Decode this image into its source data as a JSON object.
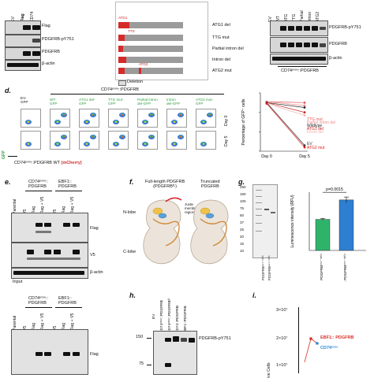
{
  "panel_a": {
    "lanes": [
      "EV",
      "Flag",
      "CD74"
    ],
    "rows": [
      "Flag",
      "PDGFRB-pY751",
      "PDGFRB",
      "β-actin"
    ]
  },
  "panel_b": {
    "rows": [
      {
        "tag": "ATG1",
        "label": "ATG1 del"
      },
      {
        "tag": "TTG",
        "label": "TTG mut"
      },
      {
        "tag": "",
        "label": "Partial intron del"
      },
      {
        "tag": "",
        "label": "Intron del"
      },
      {
        "tag": "ATG2",
        "label": "ATG2 mut"
      }
    ],
    "legend": "Deletion"
  },
  "panel_c": {
    "lanes": [
      "EV",
      "WT",
      "ATG",
      "TTG",
      "Partial",
      "Intron",
      "ATG2"
    ],
    "rows": [
      "PDGFRB-pY751",
      "PDGFRB",
      "β-actin"
    ],
    "bottom_label": "CD74ᵉˣᵒⁿ::PDGFRB"
  },
  "panel_d": {
    "label": "d.",
    "header": "CD74ᵉˣᵒⁿ::PDGFRB",
    "columns": [
      "EV-\nGFP",
      "WT-\nGFP",
      "ATG1 del-\nGFP",
      "TTG mut-\nGFP",
      "Partial intron\ndel-GFP",
      "Intron\ndel-GFP",
      "ATG2 mut-\nGFP"
    ],
    "rows": [
      "Day 0",
      "Day 5"
    ],
    "ylabel": "GFP",
    "xlabel_left": "CD74ᵉˣᵒⁿ::PDGFRB WT ",
    "xlabel_right": "(mCherry)"
  },
  "chart_data": [
    {
      "type": "line",
      "ylabel": "Percentage of GFP⁺ cells",
      "categories": [
        "Day 0",
        "Day 5"
      ],
      "ylim": [
        0,
        60
      ],
      "series": [
        {
          "name": "TTG mut",
          "values": [
            51,
            50
          ],
          "color": "#e05a5a"
        },
        {
          "name": "Partial intron del",
          "values": [
            51,
            47
          ],
          "color": "#f08a8a"
        },
        {
          "name": "Wildtype",
          "values": [
            50,
            45
          ],
          "color": "#222222"
        },
        {
          "name": "ATG1 del",
          "values": [
            50,
            40
          ],
          "color": "#c41e1e"
        },
        {
          "name": "Intron del",
          "values": [
            49,
            37
          ],
          "color": "#f4b0b0"
        },
        {
          "name": "EV",
          "values": [
            50,
            6
          ],
          "color": "#333333"
        },
        {
          "name": "ATG2 mut",
          "values": [
            49,
            4
          ],
          "color": "#e02020"
        }
      ]
    },
    {
      "type": "bar",
      "ylabel": "Luminescence intensity (RFU)",
      "categories": [
        "PDGFRB⁵⁵⁷⁻¹¹⁰⁶",
        "Trunc. PDGFRB⁵⁵⁷⁻¹¹⁰⁶"
      ],
      "values": [
        1.6,
        2.6
      ],
      "errors": [
        0.05,
        0.15
      ],
      "ylim": [
        0,
        3
      ],
      "colors": [
        "#2fb36b",
        "#2e7fd1"
      ],
      "annotation": "p=0.0015"
    }
  ],
  "panel_e": {
    "label": "e.",
    "group1": "CD74ᵉˣᵒⁿ::\nPDGFRB",
    "group2": "EBF1::\nPDGFRB",
    "lanes": [
      "Parental",
      "V5",
      "Flag",
      "Flag + V5",
      "V5",
      "Flag",
      "Flag + V5"
    ],
    "rows": [
      "Flag",
      "V5",
      "β-actin"
    ],
    "input": "Input"
  },
  "panel_f": {
    "label": "f.",
    "left_title": "Full-length PDGFRB\n(PDGFRBᶠᴸ)",
    "right_title": "Truncated\nPDGFRB",
    "n_lobe": "N-lobe",
    "c_lobe": "C-lobe",
    "jm": "Juxta-\nmembrane\nregion"
  },
  "panel_g": {
    "label": "g.",
    "markers": [
      "250",
      "150",
      "100",
      "75",
      "50",
      "37",
      "25",
      "20",
      "15",
      "10"
    ],
    "lanes": [
      "PDGFRB⁵⁵⁷⁻¹¹⁰⁶",
      "PDGFRB⁵⁵⁷⁻¹¹⁰⁶"
    ]
  },
  "panel_e2": {
    "group1": "CD74ᵉˣᵒⁿ::\nPDGFRB",
    "group2": "EBF1::\nPDGFRB",
    "lanes": [
      "Parental",
      "V5",
      "Flag",
      "Flag + V5",
      "V5",
      "Flag",
      "Flag + V5"
    ],
    "rows": [
      "Flag"
    ]
  },
  "panel_h": {
    "label": "h.",
    "lanes": [
      "EV",
      "CD74ᵉˣᵒⁿ::PDGFRB",
      "CD74ᵉˣᵒⁿ::PDGFRBᶠᴸ",
      "CD74::PDGFRB",
      "EBF1::PDGFRB"
    ],
    "markers": [
      "150",
      "75"
    ],
    "row": "PDGFRB-pY751"
  },
  "panel_i": {
    "label": "i.",
    "yticks": [
      "3×10⁷",
      "2×10⁷",
      "1×10⁷"
    ],
    "ylabel": "ive Cells",
    "legend": [
      {
        "name": "EBF1:: PDGFRB",
        "color": "#d9302c"
      },
      {
        "name": "CD74ᵉˣᵒⁿ",
        "color": "#2b8bd1"
      }
    ]
  }
}
